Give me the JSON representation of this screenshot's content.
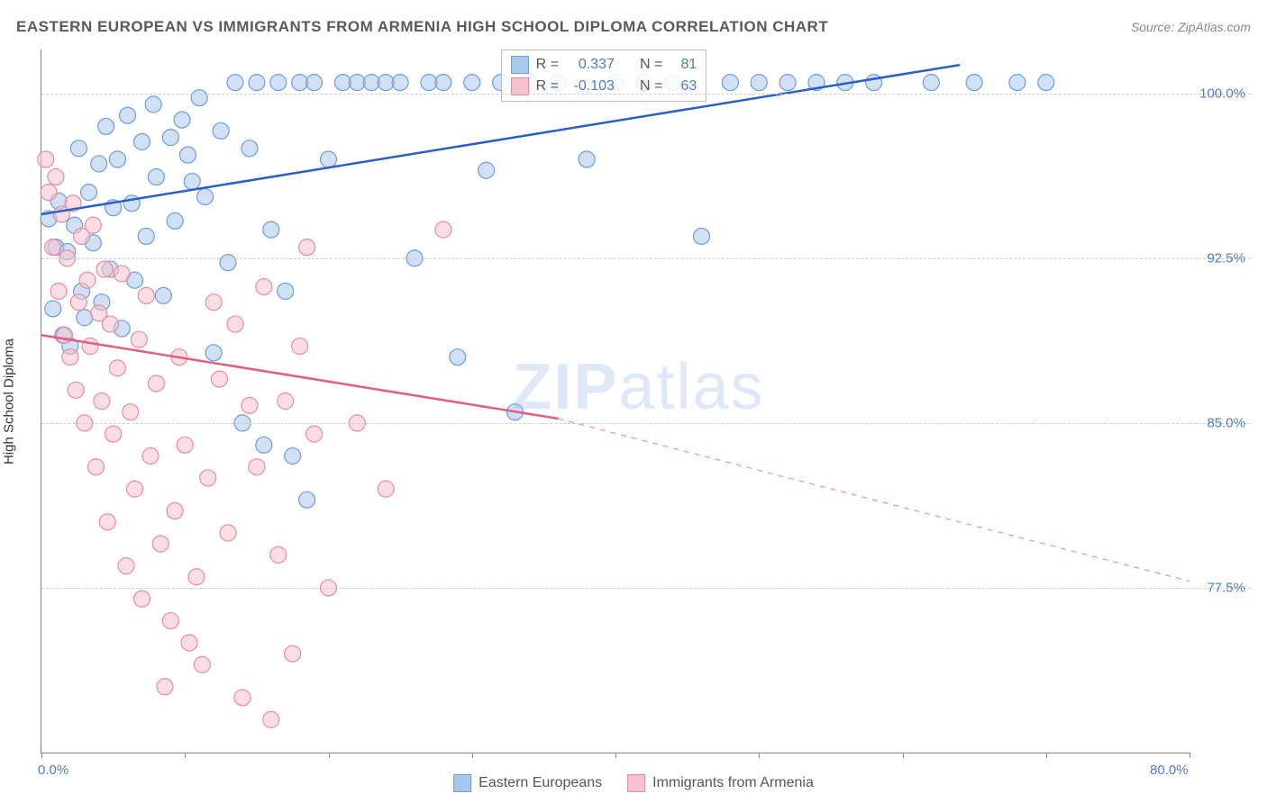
{
  "title": "EASTERN EUROPEAN VS IMMIGRANTS FROM ARMENIA HIGH SCHOOL DIPLOMA CORRELATION CHART",
  "source": "Source: ZipAtlas.com",
  "watermark_a": "ZIP",
  "watermark_b": "atlas",
  "y_axis_label": "High School Diploma",
  "chart": {
    "type": "scatter",
    "xlim": [
      0,
      80
    ],
    "ylim": [
      70,
      102
    ],
    "x_ticks": [
      0,
      10,
      20,
      30,
      40,
      50,
      60,
      70,
      80
    ],
    "x_tick_labels": {
      "0": "0.0%",
      "80": "80.0%"
    },
    "y_ticks": [
      77.5,
      85.0,
      92.5,
      100.0
    ],
    "y_tick_labels": [
      "77.5%",
      "85.0%",
      "92.5%",
      "100.0%"
    ],
    "grid_color": "#cccccc",
    "background_color": "#ffffff",
    "marker_radius": 9,
    "marker_opacity": 0.55,
    "line_width": 2.5,
    "series": [
      {
        "name": "Eastern Europeans",
        "color_fill": "#a9c6ec",
        "color_stroke": "#6f9cd8",
        "line_color": "#2a5fc7",
        "R": "0.337",
        "N": "81",
        "trend": {
          "x1": 0,
          "y1": 94.5,
          "x2": 64,
          "y2": 101.3,
          "dash_after_x": 80
        },
        "points": [
          [
            0.5,
            94.3
          ],
          [
            0.8,
            90.2
          ],
          [
            1.0,
            93.0
          ],
          [
            1.2,
            95.1
          ],
          [
            1.5,
            89.0
          ],
          [
            1.8,
            92.8
          ],
          [
            2.0,
            88.5
          ],
          [
            2.3,
            94.0
          ],
          [
            2.6,
            97.5
          ],
          [
            2.8,
            91.0
          ],
          [
            3.0,
            89.8
          ],
          [
            3.3,
            95.5
          ],
          [
            3.6,
            93.2
          ],
          [
            4.0,
            96.8
          ],
          [
            4.2,
            90.5
          ],
          [
            4.5,
            98.5
          ],
          [
            4.8,
            92.0
          ],
          [
            5.0,
            94.8
          ],
          [
            5.3,
            97.0
          ],
          [
            5.6,
            89.3
          ],
          [
            6.0,
            99.0
          ],
          [
            6.3,
            95.0
          ],
          [
            6.5,
            91.5
          ],
          [
            7.0,
            97.8
          ],
          [
            7.3,
            93.5
          ],
          [
            7.8,
            99.5
          ],
          [
            8.0,
            96.2
          ],
          [
            8.5,
            90.8
          ],
          [
            9.0,
            98.0
          ],
          [
            9.3,
            94.2
          ],
          [
            9.8,
            98.8
          ],
          [
            10.2,
            97.2
          ],
          [
            10.5,
            96.0
          ],
          [
            11.0,
            99.8
          ],
          [
            11.4,
            95.3
          ],
          [
            12.0,
            88.2
          ],
          [
            12.5,
            98.3
          ],
          [
            13.0,
            92.3
          ],
          [
            13.5,
            100.5
          ],
          [
            14.0,
            85.0
          ],
          [
            14.5,
            97.5
          ],
          [
            15.0,
            100.5
          ],
          [
            15.5,
            84.0
          ],
          [
            16.0,
            93.8
          ],
          [
            16.5,
            100.5
          ],
          [
            17.0,
            91.0
          ],
          [
            17.5,
            83.5
          ],
          [
            18.0,
            100.5
          ],
          [
            18.5,
            81.5
          ],
          [
            19.0,
            100.5
          ],
          [
            20.0,
            97.0
          ],
          [
            21.0,
            100.5
          ],
          [
            22.0,
            100.5
          ],
          [
            23.0,
            100.5
          ],
          [
            24.0,
            100.5
          ],
          [
            25.0,
            100.5
          ],
          [
            26.0,
            92.5
          ],
          [
            27.0,
            100.5
          ],
          [
            28.0,
            100.5
          ],
          [
            29.0,
            88.0
          ],
          [
            30.0,
            100.5
          ],
          [
            31.0,
            96.5
          ],
          [
            32.0,
            100.5
          ],
          [
            33.0,
            85.5
          ],
          [
            34.0,
            100.5
          ],
          [
            36.0,
            100.5
          ],
          [
            38.0,
            97.0
          ],
          [
            40.0,
            100.5
          ],
          [
            42.0,
            100.5
          ],
          [
            44.0,
            100.5
          ],
          [
            46.0,
            93.5
          ],
          [
            48.0,
            100.5
          ],
          [
            50.0,
            100.5
          ],
          [
            52.0,
            100.5
          ],
          [
            54.0,
            100.5
          ],
          [
            56.0,
            100.5
          ],
          [
            58.0,
            100.5
          ],
          [
            62.0,
            100.5
          ],
          [
            65.0,
            100.5
          ],
          [
            68.0,
            100.5
          ],
          [
            70.0,
            100.5
          ]
        ]
      },
      {
        "name": "Immigrants from Armenia",
        "color_fill": "#f5c2cd",
        "color_stroke": "#e88ba0",
        "line_color": "#e15f7e",
        "R": "-0.103",
        "N": "63",
        "trend": {
          "x1": 0,
          "y1": 89.0,
          "x2": 36,
          "y2": 85.2,
          "dash_to_x": 80,
          "dash_to_y": 77.8
        },
        "points": [
          [
            0.3,
            97.0
          ],
          [
            0.5,
            95.5
          ],
          [
            0.8,
            93.0
          ],
          [
            1.0,
            96.2
          ],
          [
            1.2,
            91.0
          ],
          [
            1.4,
            94.5
          ],
          [
            1.6,
            89.0
          ],
          [
            1.8,
            92.5
          ],
          [
            2.0,
            88.0
          ],
          [
            2.2,
            95.0
          ],
          [
            2.4,
            86.5
          ],
          [
            2.6,
            90.5
          ],
          [
            2.8,
            93.5
          ],
          [
            3.0,
            85.0
          ],
          [
            3.2,
            91.5
          ],
          [
            3.4,
            88.5
          ],
          [
            3.6,
            94.0
          ],
          [
            3.8,
            83.0
          ],
          [
            4.0,
            90.0
          ],
          [
            4.2,
            86.0
          ],
          [
            4.4,
            92.0
          ],
          [
            4.6,
            80.5
          ],
          [
            4.8,
            89.5
          ],
          [
            5.0,
            84.5
          ],
          [
            5.3,
            87.5
          ],
          [
            5.6,
            91.8
          ],
          [
            5.9,
            78.5
          ],
          [
            6.2,
            85.5
          ],
          [
            6.5,
            82.0
          ],
          [
            6.8,
            88.8
          ],
          [
            7.0,
            77.0
          ],
          [
            7.3,
            90.8
          ],
          [
            7.6,
            83.5
          ],
          [
            8.0,
            86.8
          ],
          [
            8.3,
            79.5
          ],
          [
            8.6,
            73.0
          ],
          [
            9.0,
            76.0
          ],
          [
            9.3,
            81.0
          ],
          [
            9.6,
            88.0
          ],
          [
            10.0,
            84.0
          ],
          [
            10.3,
            75.0
          ],
          [
            10.8,
            78.0
          ],
          [
            11.2,
            74.0
          ],
          [
            11.6,
            82.5
          ],
          [
            12.0,
            90.5
          ],
          [
            12.4,
            87.0
          ],
          [
            13.0,
            80.0
          ],
          [
            13.5,
            89.5
          ],
          [
            14.0,
            72.5
          ],
          [
            14.5,
            85.8
          ],
          [
            15.0,
            83.0
          ],
          [
            15.5,
            91.2
          ],
          [
            16.0,
            71.5
          ],
          [
            16.5,
            79.0
          ],
          [
            17.0,
            86.0
          ],
          [
            17.5,
            74.5
          ],
          [
            18.0,
            88.5
          ],
          [
            18.5,
            93.0
          ],
          [
            19.0,
            84.5
          ],
          [
            20.0,
            77.5
          ],
          [
            22.0,
            85.0
          ],
          [
            24.0,
            82.0
          ],
          [
            28.0,
            93.8
          ]
        ]
      }
    ]
  },
  "legend": {
    "series1_label": "Eastern Europeans",
    "series2_label": "Immigrants from Armenia"
  },
  "stats_labels": {
    "R": "R =",
    "N": "N ="
  }
}
